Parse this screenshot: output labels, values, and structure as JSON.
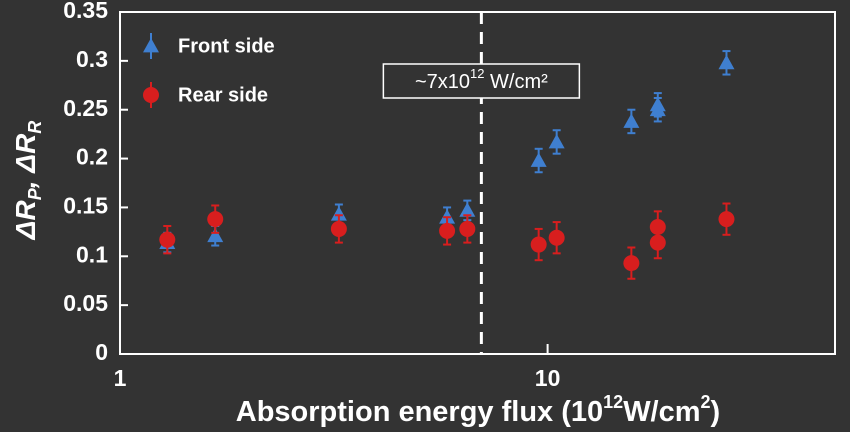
{
  "chart_data": {
    "type": "scatter",
    "x_label": [
      "Absorption energy flux (10",
      "12",
      "W/cm",
      "2",
      ")"
    ],
    "y_label": [
      "ΔR",
      "P",
      ", ΔR",
      "R"
    ],
    "xlim": [
      1,
      47
    ],
    "xticks": [
      1,
      10
    ],
    "x_log": true,
    "ylim": [
      0,
      0.35
    ],
    "yticks": [
      0,
      0.05,
      0.1,
      0.15,
      0.2,
      0.25,
      0.3,
      0.35
    ],
    "legend": "upper left",
    "vline": {
      "x": 7,
      "annotation": [
        "~7x10",
        "12",
        " W/cm²"
      ]
    },
    "series": [
      {
        "name": "Front side",
        "color": "#3f7fd0",
        "marker": "triangle",
        "x": [
          1.29,
          1.67,
          3.25,
          5.82,
          6.49,
          9.53,
          10.5,
          15.7,
          18.1,
          18.1,
          26.2
        ],
        "values": [
          0.114,
          0.121,
          0.143,
          0.14,
          0.147,
          0.198,
          0.217,
          0.238,
          0.255,
          0.25,
          0.298
        ],
        "errors": [
          0.01,
          0.01,
          0.01,
          0.01,
          0.01,
          0.012,
          0.012,
          0.012,
          0.012,
          0.012,
          0.012
        ]
      },
      {
        "name": "Rear side",
        "color": "#d81e1e",
        "marker": "circle",
        "x": [
          1.29,
          1.67,
          3.25,
          5.82,
          6.49,
          9.53,
          10.5,
          15.7,
          18.1,
          18.1,
          26.2
        ],
        "values": [
          0.117,
          0.138,
          0.128,
          0.126,
          0.128,
          0.112,
          0.119,
          0.093,
          0.13,
          0.114,
          0.138
        ],
        "errors": [
          0.014,
          0.014,
          0.014,
          0.014,
          0.014,
          0.016,
          0.016,
          0.016,
          0.016,
          0.016,
          0.016
        ]
      }
    ]
  }
}
